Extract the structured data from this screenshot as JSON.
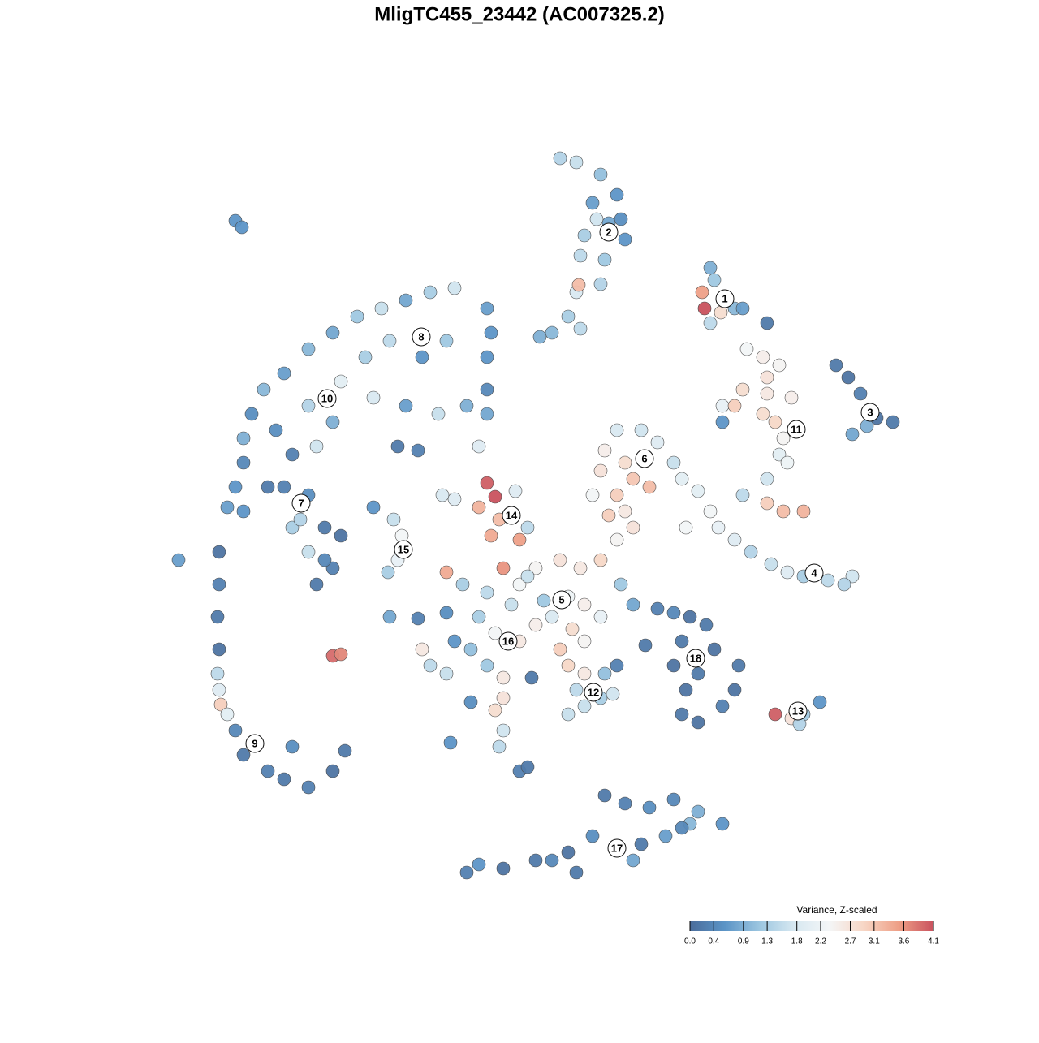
{
  "chart_data": {
    "type": "scatter",
    "title": "MligTC455_23442 (AC007325.2)",
    "xlim": [
      0,
      128
    ],
    "ylim": [
      0,
      128
    ],
    "x": [
      69,
      71,
      74,
      76,
      73,
      76.5,
      73.5,
      72,
      77,
      74.5,
      71.5,
      74,
      71,
      70,
      68,
      66.5,
      71.5,
      75,
      71.3,
      87.5,
      88,
      86.5,
      86.8,
      88.8,
      90.5,
      87.5,
      91.5,
      94.5,
      103,
      104.5,
      106,
      108,
      110,
      105,
      106.8,
      92,
      94,
      96,
      94.5,
      91.5,
      94.5,
      97.5,
      89,
      90.5,
      94,
      95.5,
      96.5,
      96,
      97,
      94.5,
      91.5,
      94.5,
      96.5,
      99,
      89,
      86,
      87.5,
      88.5,
      90.5,
      92.5,
      95,
      97,
      99,
      102,
      105,
      104,
      84.5,
      76,
      79,
      81,
      74.5,
      77,
      74,
      78,
      80,
      76,
      83,
      84,
      75,
      77,
      73,
      60,
      61,
      59,
      61.5,
      60.5,
      63.5,
      54.5,
      56,
      65,
      64,
      66,
      69,
      71.5,
      64,
      67,
      70,
      72,
      74,
      68,
      66,
      70.5,
      72,
      69,
      65,
      62,
      74,
      76,
      78,
      76.5,
      78,
      60,
      63,
      59,
      61,
      64,
      58,
      56,
      52,
      53,
      55,
      60,
      62,
      62,
      61,
      55,
      57,
      55,
      70,
      72,
      74.5,
      76,
      71,
      70,
      74,
      75.5,
      72,
      81,
      83,
      85,
      87,
      84,
      83,
      86,
      84.5,
      84,
      86,
      89,
      90.5,
      91,
      88,
      79.5,
      95.5,
      97.5,
      99,
      101,
      98.5,
      74.5,
      77,
      80,
      83,
      86,
      89,
      85,
      82,
      79,
      76,
      73,
      70,
      68,
      66,
      62,
      59,
      57.5,
      71,
      78,
      84,
      56,
      53,
      50,
      47,
      44,
      41,
      38,
      35,
      32.5,
      31,
      30,
      30,
      29,
      28,
      60,
      60.5,
      60,
      60,
      60,
      59,
      57.5,
      54,
      50,
      46,
      42,
      45,
      48,
      52,
      55,
      38,
      41,
      34,
      36,
      33,
      39,
      30,
      35,
      38,
      36,
      38,
      40,
      42,
      41,
      39,
      40,
      37,
      27,
      27,
      26.8,
      27,
      26.8,
      27,
      27.2,
      28,
      29,
      30,
      33,
      35,
      38,
      41,
      42.5,
      36,
      46,
      48.5,
      49.5,
      49,
      47.8,
      48,
      51.5,
      29,
      29.8,
      22,
      41,
      42,
      49,
      51.5,
      64,
      65,
      62,
      61.5,
      58,
      55.5,
      65.5
    ],
    "y": [
      108.5,
      108,
      106.5,
      104,
      103,
      101,
      101,
      99,
      98.5,
      96,
      96.5,
      93,
      92,
      89,
      87,
      86.5,
      87.5,
      100.5,
      92.9,
      95,
      93.5,
      92,
      90,
      89.5,
      90,
      88.2,
      90,
      88.2,
      83,
      81.5,
      79.5,
      76.5,
      76,
      74.5,
      75.5,
      85,
      84,
      83,
      81.5,
      80,
      79.5,
      79,
      78,
      78,
      77,
      76,
      74,
      72,
      71,
      69,
      67,
      66,
      65,
      65,
      76,
      67.5,
      65,
      63,
      61.5,
      60,
      58.5,
      57.5,
      57,
      56.5,
      57,
      56,
      63,
      75,
      75,
      73.5,
      72.5,
      71,
      70,
      69,
      68,
      67,
      71,
      69,
      64.5,
      65,
      67,
      68.5,
      66.8,
      65.5,
      64,
      62,
      67.5,
      67,
      66.5,
      63,
      61.5,
      58,
      59,
      58,
      56,
      54,
      54.5,
      53.5,
      52,
      52,
      51,
      50.5,
      49,
      48,
      57,
      58,
      59,
      61.5,
      63,
      56,
      53.5,
      55,
      53.5,
      52,
      50,
      49,
      48,
      49,
      48,
      46,
      45,
      46,
      44.5,
      42,
      40.5,
      52.5,
      56,
      57.5,
      46,
      45,
      45,
      46,
      43,
      40,
      42,
      42.5,
      41,
      53,
      52.5,
      52,
      51,
      49,
      46,
      45,
      43,
      40,
      39,
      41,
      43,
      46,
      48,
      48.5,
      40,
      39.5,
      40,
      41.5,
      38.8,
      30,
      29,
      28.5,
      29.5,
      28,
      26.5,
      26.5,
      25,
      24,
      23.5,
      25,
      23,
      22,
      22,
      21,
      21.5,
      20.5,
      20.5,
      22,
      26,
      92.5,
      92,
      91,
      90,
      89,
      87,
      85,
      82,
      80,
      77,
      74,
      71,
      68,
      65.5,
      90,
      87,
      84,
      80,
      77,
      73,
      78,
      77,
      78,
      79,
      81,
      84,
      86,
      84,
      86,
      78,
      76,
      75,
      72,
      68,
      73,
      65,
      68,
      67,
      63,
      60,
      63,
      62,
      58,
      56,
      59,
      64,
      60,
      56,
      52,
      48,
      45,
      43,
      41.2,
      40,
      38,
      35,
      33,
      32,
      31,
      33,
      35.5,
      36,
      65.5,
      64,
      62,
      59,
      57.5,
      52,
      51.8,
      100.8,
      100,
      59,
      47.2,
      47.4,
      73,
      72.5,
      33,
      33.5,
      38,
      36,
      41.5,
      36.5,
      44.5
    ],
    "values": [
      1.4,
      1.6,
      1.1,
      0.6,
      0.7,
      0.5,
      1.7,
      1.3,
      0.6,
      1.2,
      1.5,
      1.4,
      1.8,
      1.3,
      1.0,
      0.9,
      1.5,
      0.8,
      3.2,
      0.9,
      1.2,
      3.5,
      4.1,
      2.8,
      1.0,
      1.5,
      0.7,
      0.2,
      0.2,
      0.1,
      0.3,
      0.1,
      0.2,
      0.8,
      0.9,
      2.3,
      2.5,
      2.4,
      2.7,
      2.8,
      2.6,
      2.5,
      2.1,
      3.0,
      2.8,
      2.9,
      2.4,
      2.0,
      2.2,
      1.7,
      1.5,
      3.0,
      3.2,
      3.3,
      0.6,
      2.0,
      2.3,
      2.1,
      1.9,
      1.4,
      1.6,
      1.9,
      1.3,
      1.5,
      1.7,
      1.4,
      2.3,
      1.8,
      1.7,
      1.9,
      2.5,
      2.8,
      2.7,
      3.1,
      3.2,
      3.0,
      1.6,
      2.0,
      3.0,
      2.6,
      2.3,
      4.0,
      4.1,
      3.3,
      3.2,
      3.4,
      1.9,
      1.8,
      1.9,
      1.5,
      3.5,
      2.4,
      2.7,
      2.6,
      2.3,
      1.2,
      2.2,
      2.5,
      2.1,
      1.8,
      2.5,
      2.8,
      2.4,
      3.0,
      1.6,
      3.6,
      2.9,
      2.4,
      2.7,
      1.2,
      0.8,
      1.5,
      1.6,
      1.3,
      2.3,
      2.6,
      1.1,
      0.6,
      2.6,
      1.5,
      1.6,
      1.2,
      2.6,
      2.7,
      2.8,
      0.5,
      1.3,
      3.4,
      2.9,
      2.6,
      1.1,
      0.3,
      1.5,
      1.6,
      1.3,
      1.7,
      1.6,
      0.3,
      0.4,
      0.1,
      0.2,
      0.2,
      0.1,
      0.2,
      0.1,
      0.2,
      0.1,
      0.3,
      0.1,
      0.2,
      0.1,
      0.2,
      4.0,
      2.7,
      1.2,
      0.6,
      1.4,
      0.2,
      0.3,
      0.5,
      0.4,
      0.9,
      0.6,
      1.0,
      0.7,
      0.2,
      0.3,
      0.5,
      0.1,
      0.4,
      0.2,
      0.1,
      0.6,
      0.3,
      0.2,
      0.8,
      0.4,
      1.7,
      1.3,
      0.8,
      1.6,
      1.2,
      0.8,
      1.0,
      0.7,
      1.0,
      0.5,
      0.9,
      0.4,
      0.6,
      0.7,
      0.7,
      0.6,
      0.6,
      0.4,
      0.8,
      1.9,
      0.9,
      1.6,
      0.7,
      1.8,
      2.0,
      1.3,
      1.5,
      0.6,
      1.2,
      1.4,
      0.9,
      0.5,
      0.3,
      0.2,
      1.7,
      0.6,
      0.3,
      0.5,
      1.3,
      1.6,
      0.2,
      0.1,
      0.3,
      0.2,
      0.4,
      1.4,
      0.1,
      0.3,
      0.2,
      0.1,
      1.5,
      1.9,
      3.0,
      2.0,
      0.4,
      0.2,
      0.3,
      0.2,
      0.3,
      0.1,
      0.2,
      0.5,
      0.6,
      1.6,
      2.3,
      2.1,
      1.3,
      0.8,
      0.3,
      0.6,
      0.6,
      0.7,
      3.9,
      3.7,
      0.2,
      0.3,
      0.3,
      0.2,
      1.7,
      1.5,
      0.5,
      0.6,
      0.2
    ],
    "cluster_labels": {
      "labels": [
        "1",
        "2",
        "3",
        "4",
        "5",
        "6",
        "7",
        "8",
        "9",
        "10",
        "11",
        "12",
        "13",
        "14",
        "15",
        "16",
        "17",
        "18"
      ],
      "x": [
        89.3,
        75,
        107.2,
        100.3,
        69.2,
        79.4,
        37.1,
        51.9,
        31.4,
        40.3,
        98.1,
        73.1,
        98.3,
        63,
        49.7,
        62.6,
        76,
        85.7
      ],
      "y": [
        91.2,
        99.4,
        77.2,
        57.4,
        54.1,
        71.5,
        66,
        86.5,
        36.4,
        78.9,
        75.1,
        42.7,
        40.4,
        64.5,
        60.3,
        49,
        23.5,
        46.9
      ]
    },
    "colorbar": {
      "title": "Variance, Z-scaled",
      "clim": [
        0,
        4.1
      ],
      "colors": [
        "#4b6d9b",
        "#5b94c6",
        "#9cc6e0",
        "#d7e8f1",
        "#f4f6f7",
        "#f7d6c5",
        "#ee9f86",
        "#c9525e"
      ],
      "ticks": [
        {
          "value": 0,
          "label": "0.0"
        },
        0.4,
        0.9,
        1.3,
        1.8,
        2.2,
        2.7,
        3.1,
        3.6,
        4.1
      ]
    }
  }
}
